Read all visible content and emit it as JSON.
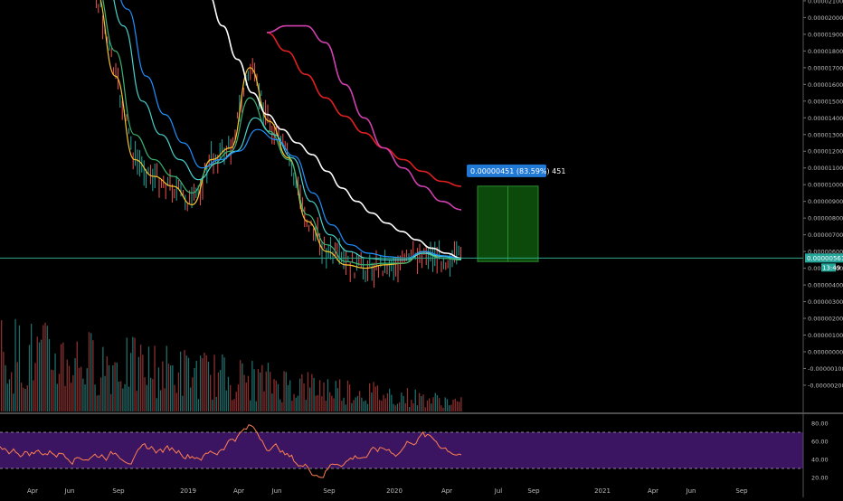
{
  "chart_data": {
    "type": "line",
    "background": "#000000",
    "price_axis": {
      "ticks": [
        "0.00002100",
        "0.00002000",
        "0.00001900",
        "0.00001800",
        "0.00001700",
        "0.00001600",
        "0.00001500",
        "0.00001400",
        "0.00001300",
        "0.00001200",
        "0.00001100",
        "0.00001000",
        "0.00000900",
        "0.00000800",
        "0.00000700",
        "0.00000600",
        "0.00000500",
        "0.00000400",
        "0.00000300",
        "0.00000200",
        "0.00000100",
        "0.00000000",
        "-0.00000100",
        "-0.00000200"
      ],
      "current_price_label": "0.00000561",
      "countdown_label": "13:49",
      "current_price": 5.61e-06
    },
    "rsi_axis": {
      "ticks": [
        "80.00",
        "60.00",
        "40.00",
        "20.00"
      ],
      "upper_band": 70,
      "lower_band": 30
    },
    "time_axis": [
      "Apr",
      "Jun",
      "Sep",
      "2019",
      "Apr",
      "Jun",
      "Sep",
      "2020",
      "Apr",
      "Jul",
      "Sep",
      "2021",
      "Apr",
      "Jun",
      "Sep"
    ],
    "position_tool": {
      "label": "0.00000451 (83.59%) 451",
      "entry": 5.4e-06,
      "target": 9.91e-06,
      "fill_color": "#0b4a0b",
      "label_bg": "#2179d6"
    },
    "series": [
      {
        "color": "#f4c430",
        "values": [
          2.3e-05,
          2.15e-05,
          1.65e-05,
          1.15e-05,
          1.05e-05,
          9.9e-06,
          8.8e-06,
          1.15e-05,
          1.22e-05,
          1.7e-05,
          1.38e-05,
          1.16e-05,
          7.8e-06,
          6e-06,
          5.2e-06,
          5e-06,
          5.2e-06,
          5.3e-06,
          6e-06,
          5.6e-06,
          5.5e-06
        ]
      },
      {
        "color": "#3cb371",
        "values": [
          2.3e-05,
          2.2e-05,
          1.8e-05,
          1.3e-05,
          1.15e-05,
          1.05e-05,
          9.5e-06,
          1.12e-05,
          1.2e-05,
          1.52e-05,
          1.32e-05,
          1.15e-05,
          8.2e-06,
          6.4e-06,
          5.4e-06,
          5.2e-06,
          5.3e-06,
          5.3e-06,
          5.9e-06,
          5.6e-06,
          5.5e-06
        ]
      },
      {
        "color": "#48d1cc",
        "values": [
          2.3e-05,
          2.25e-05,
          1.95e-05,
          1.5e-05,
          1.3e-05,
          1.15e-05,
          1.03e-05,
          1.13e-05,
          1.2e-05,
          1.4e-05,
          1.3e-05,
          1.16e-05,
          9e-06,
          7e-06,
          6e-06,
          5.6e-06,
          5.5e-06,
          5.5e-06,
          5.9e-06,
          5.7e-06,
          5.55e-06
        ]
      },
      {
        "color": "#1e90ff",
        "values": [
          2.3e-05,
          2.28e-05,
          2.05e-05,
          1.65e-05,
          1.42e-05,
          1.25e-05,
          1.1e-05,
          1.15e-05,
          1.2e-05,
          1.33e-05,
          1.27e-05,
          1.17e-05,
          9.5e-06,
          7.6e-06,
          6.4e-06,
          5.9e-06,
          5.7e-06,
          5.6e-06,
          6e-06,
          5.75e-06,
          5.6e-06
        ]
      },
      {
        "color": "#ffffff",
        "values": [
          2.4e-05,
          2.35e-05,
          2.3e-05,
          2.15e-05,
          1.95e-05,
          1.75e-05,
          1.55e-05,
          1.42e-05,
          1.33e-05,
          1.25e-05,
          1.18e-05,
          1.08e-05,
          9.8e-06,
          9e-06,
          8.3e-06,
          7.7e-06,
          7.2e-06,
          6.7e-06,
          6.2e-06,
          5.9e-06,
          5.6e-06
        ]
      },
      {
        "color": "#e02020",
        "values": [
          1.91e-05,
          1.8e-05,
          1.66e-05,
          1.52e-05,
          1.41e-05,
          1.31e-05,
          1.22e-05,
          1.15e-05,
          1.08e-05,
          1.02e-05,
          9.9e-06
        ]
      },
      {
        "color": "#d040b0",
        "values": [
          1.91e-05,
          1.95e-05,
          1.95e-05,
          1.85e-05,
          1.6e-05,
          1.4e-05,
          1.22e-05,
          1.1e-05,
          9.9e-06,
          9e-06,
          8.5e-06
        ]
      }
    ]
  }
}
